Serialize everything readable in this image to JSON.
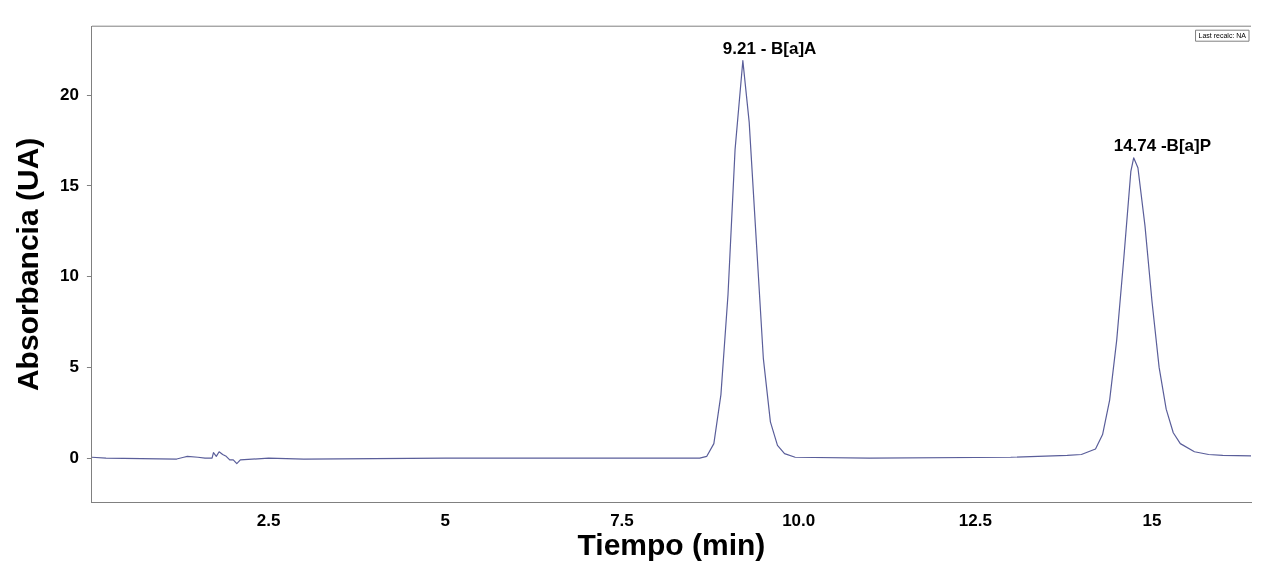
{
  "chart_data": {
    "type": "line",
    "xlabel": "Tiempo (min)",
    "ylabel": "Absorbancia (UA)",
    "xlim": [
      0,
      16.4
    ],
    "ylim": [
      -2.45,
      23.8
    ],
    "xticks": [
      2.5,
      5,
      7.5,
      {
        "value": 10,
        "label": "10.0"
      },
      12.5,
      15
    ],
    "yticks": [
      0,
      5,
      10,
      15,
      20
    ],
    "grid": false,
    "legend": false,
    "marker": "none",
    "line_style": "solid",
    "series": [
      {
        "color": "#5a5e9a",
        "x": [
          0,
          0.2,
          1.2,
          1.3,
          1.35,
          1.5,
          1.6,
          1.7,
          1.72,
          1.76,
          1.8,
          1.85,
          1.9,
          1.95,
          2.0,
          2.05,
          2.1,
          2.5,
          3.0,
          5,
          7.5,
          8.6,
          8.7,
          8.8,
          8.9,
          9.0,
          9.1,
          9.21,
          9.3,
          9.4,
          9.5,
          9.6,
          9.7,
          9.8,
          9.95,
          11,
          13,
          13.8,
          14.0,
          14.2,
          14.3,
          14.4,
          14.5,
          14.6,
          14.7,
          14.74,
          14.8,
          14.9,
          15.0,
          15.1,
          15.2,
          15.3,
          15.4,
          15.6,
          15.8,
          16.0,
          16.4
        ],
        "values": [
          0.05,
          0,
          -0.05,
          0.05,
          0.1,
          0.05,
          0,
          0,
          0.3,
          0.1,
          0.35,
          0.2,
          0.1,
          -0.1,
          -0.1,
          -0.3,
          -0.1,
          0,
          -0.05,
          0,
          0,
          0,
          0.1,
          0.8,
          3.5,
          9.0,
          17.0,
          21.9,
          18.5,
          12.0,
          5.5,
          2.0,
          0.7,
          0.25,
          0.05,
          0,
          0.05,
          0.15,
          0.2,
          0.5,
          1.3,
          3.2,
          6.5,
          11.0,
          15.8,
          16.55,
          16.0,
          12.8,
          8.6,
          5.0,
          2.7,
          1.4,
          0.8,
          0.35,
          0.2,
          0.15,
          0.12
        ]
      }
    ],
    "annotations": [
      {
        "text": "9.21 - B[a]A",
        "x": 9.21,
        "y": 21.9
      },
      {
        "text": "14.74 -B[a]P",
        "x": 14.74,
        "y": 16.55
      },
      "Last recalc: NA"
    ]
  }
}
